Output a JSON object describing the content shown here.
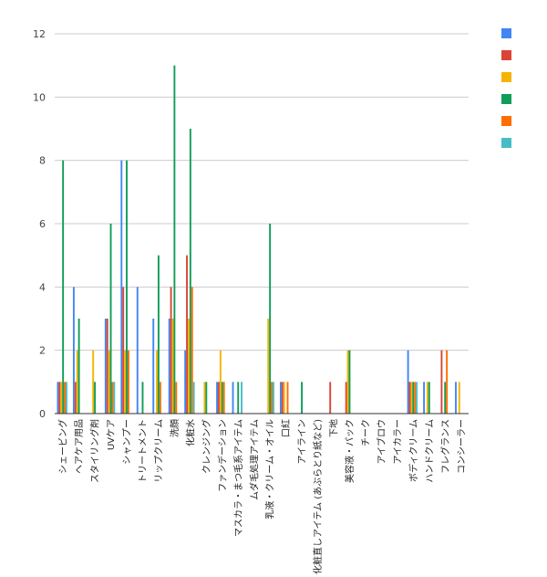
{
  "chart_data": {
    "type": "bar",
    "title": "",
    "xlabel": "",
    "ylabel": "",
    "ylim": [
      0,
      12
    ],
    "yticks": [
      0,
      2,
      4,
      6,
      8,
      10,
      12
    ],
    "grid": true,
    "legend_position": "right",
    "categories": [
      "シェービング",
      "ヘアケア用品",
      "スタイリング剤",
      "UVケア",
      "シャンプー",
      "トリートメント",
      "リップクリーム",
      "洗顔",
      "化粧水",
      "クレンジング",
      "ファンデーション",
      "マスカラ・まつ毛系アイテム",
      "ムダ毛処理アイテム",
      "乳液・クリーム・オイル",
      "口紅",
      "アイライン",
      "化粧直しアイテム (あぶらとり紙など)",
      "下地",
      "美容液・パック",
      "チーク",
      "アイブロウ",
      "アイカラー",
      "ボディクリーム",
      "ハンドクリーム",
      "フレグランス",
      "コンシーラー"
    ],
    "series": [
      {
        "name": "",
        "color": "#4285f4",
        "values": [
          1,
          4,
          0,
          3,
          8,
          4,
          3,
          3,
          2,
          0,
          1,
          1,
          0,
          0,
          1,
          0,
          0,
          0,
          0,
          0,
          0,
          0,
          2,
          1,
          0,
          1
        ]
      },
      {
        "name": "",
        "color": "#db4437",
        "values": [
          1,
          1,
          0,
          3,
          4,
          0,
          0,
          4,
          5,
          0,
          1,
          0,
          0,
          0,
          1,
          0,
          0,
          1,
          1,
          0,
          0,
          0,
          1,
          0,
          2,
          0
        ]
      },
      {
        "name": "",
        "color": "#f4b400",
        "values": [
          1,
          2,
          2,
          2,
          2,
          0,
          2,
          3,
          3,
          1,
          2,
          0,
          0,
          3,
          1,
          0,
          0,
          0,
          2,
          0,
          0,
          0,
          1,
          1,
          0,
          1
        ]
      },
      {
        "name": "",
        "color": "#0f9d58",
        "values": [
          8,
          3,
          1,
          6,
          8,
          1,
          5,
          11,
          9,
          1,
          1,
          1,
          0,
          6,
          0,
          1,
          0,
          0,
          2,
          0,
          0,
          0,
          1,
          1,
          1,
          0
        ]
      },
      {
        "name": "",
        "color": "#ff6d00",
        "values": [
          1,
          0,
          0,
          1,
          2,
          0,
          1,
          1,
          4,
          0,
          1,
          0,
          0,
          1,
          1,
          0,
          0,
          0,
          0,
          0,
          0,
          0,
          1,
          0,
          2,
          0
        ]
      },
      {
        "name": "",
        "color": "#46bdc6",
        "values": [
          1,
          0,
          0,
          1,
          0,
          0,
          0,
          0,
          1,
          0,
          0,
          1,
          0,
          1,
          0,
          0,
          0,
          0,
          0,
          0,
          0,
          0,
          1,
          0,
          0,
          0
        ]
      }
    ]
  }
}
